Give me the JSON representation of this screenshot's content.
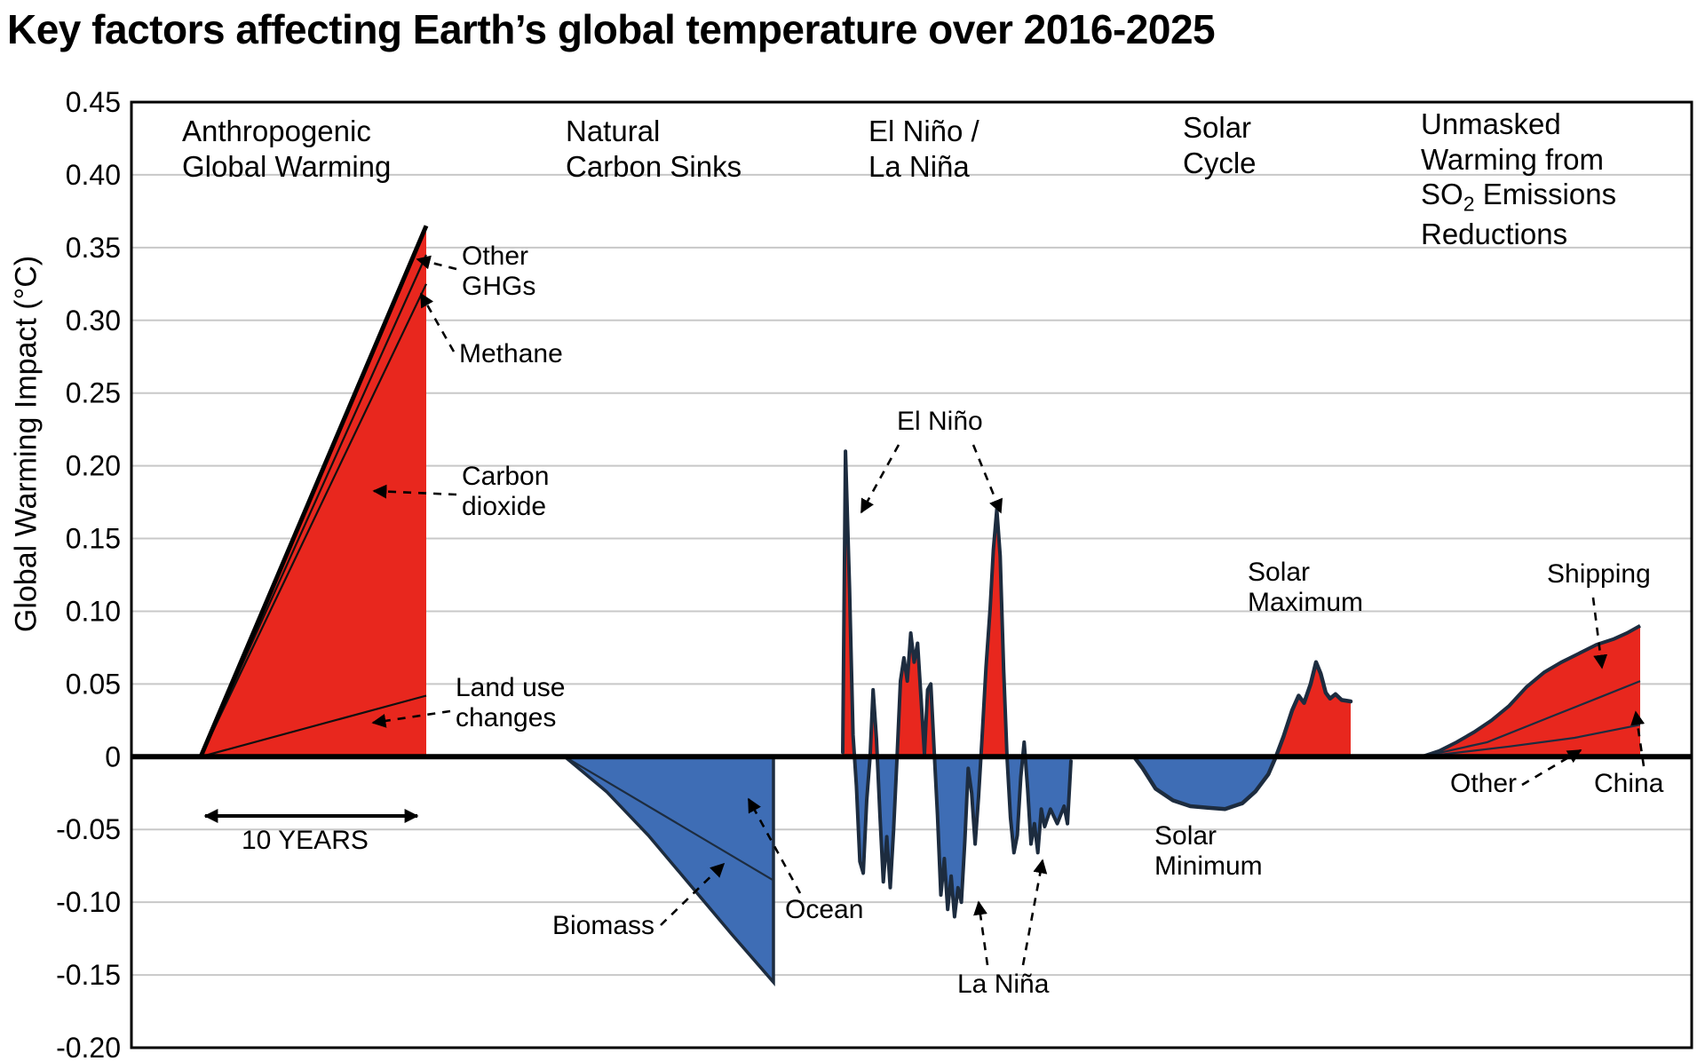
{
  "chart_data": {
    "type": "area",
    "title": "Key factors affecting Earth’s global temperature over 2016-2025",
    "ylabel": "Global Warming Impact (°C)",
    "ylim": [
      -0.2,
      0.45
    ],
    "ytick_step": 0.05,
    "yticks": [
      "0.45",
      "0.40",
      "0.35",
      "0.30",
      "0.25",
      "0.20",
      "0.15",
      "0.10",
      "0.05",
      "0",
      "-0.05",
      "-0.10",
      "-0.15",
      "-0.20"
    ],
    "grid": true,
    "legend": "none",
    "x_scale_note": "10 YEARS",
    "colors": {
      "red": "#e8271e",
      "blue": "#3e6db5",
      "outline": "#1d2c3f",
      "grid": "#c8c8c8",
      "axis": "#000000"
    },
    "sections": [
      {
        "id": "anthropogenic",
        "label": "Anthropogenic\nGlobal Warming",
        "fill": "red",
        "end_value_total": 0.365,
        "top_edge": [
          [
            0,
            0
          ],
          [
            1,
            0.365
          ]
        ],
        "inner_lines": [
          {
            "name": "methane-top",
            "points": [
              [
                0,
                0
              ],
              [
                1,
                0.345
              ]
            ]
          },
          {
            "name": "carbon-dioxide-top",
            "points": [
              [
                0,
                0
              ],
              [
                1,
                0.325
              ]
            ]
          },
          {
            "name": "land-use-top",
            "points": [
              [
                0,
                0
              ],
              [
                1,
                0.042
              ]
            ]
          }
        ]
      },
      {
        "id": "carbon-sinks",
        "label": "Natural\nCarbon Sinks",
        "fill": "blue",
        "end_value_total": -0.155,
        "edge": [
          [
            0,
            0
          ],
          [
            0.2,
            -0.024
          ],
          [
            0.4,
            -0.054
          ],
          [
            0.6,
            -0.088
          ],
          [
            0.8,
            -0.122
          ],
          [
            1,
            -0.155
          ]
        ],
        "inner_lines": [
          {
            "name": "ocean-biomass-boundary",
            "points": [
              [
                0,
                0
              ],
              [
                1,
                -0.085
              ]
            ]
          }
        ]
      },
      {
        "id": "enso",
        "label": "El Niño /\nLa Niña",
        "fill": "signed",
        "peak_el_nino_values": [
          0.21,
          0.17
        ],
        "trough_la_nina_values": [
          -0.11,
          -0.09
        ],
        "points": [
          [
            0.0,
            0.003
          ],
          [
            0.012,
            0.21
          ],
          [
            0.03,
            0.115
          ],
          [
            0.045,
            0.015
          ],
          [
            0.06,
            -0.02
          ],
          [
            0.075,
            -0.072
          ],
          [
            0.09,
            -0.08
          ],
          [
            0.105,
            -0.03
          ],
          [
            0.12,
            0.0
          ],
          [
            0.133,
            0.046
          ],
          [
            0.148,
            0.012
          ],
          [
            0.163,
            -0.04
          ],
          [
            0.178,
            -0.086
          ],
          [
            0.193,
            -0.055
          ],
          [
            0.208,
            -0.09
          ],
          [
            0.223,
            -0.05
          ],
          [
            0.238,
            0.0
          ],
          [
            0.253,
            0.052
          ],
          [
            0.268,
            0.068
          ],
          [
            0.283,
            0.052
          ],
          [
            0.298,
            0.085
          ],
          [
            0.313,
            0.065
          ],
          [
            0.328,
            0.078
          ],
          [
            0.343,
            0.04
          ],
          [
            0.358,
            0.002
          ],
          [
            0.372,
            0.046
          ],
          [
            0.386,
            0.05
          ],
          [
            0.4,
            0.006
          ],
          [
            0.415,
            -0.04
          ],
          [
            0.43,
            -0.095
          ],
          [
            0.445,
            -0.07
          ],
          [
            0.46,
            -0.105
          ],
          [
            0.475,
            -0.082
          ],
          [
            0.49,
            -0.11
          ],
          [
            0.505,
            -0.09
          ],
          [
            0.52,
            -0.1
          ],
          [
            0.535,
            -0.058
          ],
          [
            0.55,
            -0.008
          ],
          [
            0.565,
            -0.025
          ],
          [
            0.58,
            -0.06
          ],
          [
            0.595,
            -0.028
          ],
          [
            0.61,
            0.012
          ],
          [
            0.628,
            0.062
          ],
          [
            0.646,
            0.102
          ],
          [
            0.66,
            0.142
          ],
          [
            0.675,
            0.17
          ],
          [
            0.69,
            0.138
          ],
          [
            0.705,
            0.06
          ],
          [
            0.72,
            0.0
          ],
          [
            0.735,
            -0.042
          ],
          [
            0.75,
            -0.066
          ],
          [
            0.765,
            -0.054
          ],
          [
            0.78,
            -0.014
          ],
          [
            0.795,
            0.01
          ],
          [
            0.81,
            -0.022
          ],
          [
            0.825,
            -0.06
          ],
          [
            0.84,
            -0.046
          ],
          [
            0.855,
            -0.066
          ],
          [
            0.87,
            -0.036
          ],
          [
            0.885,
            -0.048
          ],
          [
            0.91,
            -0.036
          ],
          [
            0.94,
            -0.046
          ],
          [
            0.97,
            -0.034
          ],
          [
            0.985,
            -0.046
          ],
          [
            1.0,
            -0.003
          ]
        ]
      },
      {
        "id": "solar",
        "label": "Solar\nCycle",
        "fill": "signed",
        "solar_minimum_value": -0.036,
        "solar_maximum_value": 0.065,
        "points": [
          [
            0,
            0
          ],
          [
            0.04,
            -0.008
          ],
          [
            0.1,
            -0.022
          ],
          [
            0.18,
            -0.03
          ],
          [
            0.26,
            -0.034
          ],
          [
            0.34,
            -0.035
          ],
          [
            0.42,
            -0.036
          ],
          [
            0.5,
            -0.032
          ],
          [
            0.56,
            -0.024
          ],
          [
            0.62,
            -0.012
          ],
          [
            0.655,
            0.0
          ],
          [
            0.69,
            0.014
          ],
          [
            0.73,
            0.032
          ],
          [
            0.76,
            0.042
          ],
          [
            0.785,
            0.037
          ],
          [
            0.815,
            0.05
          ],
          [
            0.84,
            0.065
          ],
          [
            0.862,
            0.057
          ],
          [
            0.885,
            0.044
          ],
          [
            0.905,
            0.04
          ],
          [
            0.93,
            0.043
          ],
          [
            0.958,
            0.039
          ],
          [
            1,
            0.038
          ]
        ]
      },
      {
        "id": "so2",
        "label_pre": "Unmasked\nWarming from\nSO",
        "label_sub": "2",
        "label_post": " Emissions\nReductions",
        "fill": "red",
        "end_value_total": 0.09,
        "top_edge": [
          [
            0,
            0
          ],
          [
            0.08,
            0.004
          ],
          [
            0.16,
            0.01
          ],
          [
            0.24,
            0.017
          ],
          [
            0.32,
            0.025
          ],
          [
            0.4,
            0.035
          ],
          [
            0.48,
            0.048
          ],
          [
            0.56,
            0.058
          ],
          [
            0.64,
            0.065
          ],
          [
            0.72,
            0.071
          ],
          [
            0.8,
            0.077
          ],
          [
            0.88,
            0.081
          ],
          [
            0.94,
            0.085
          ],
          [
            1,
            0.09
          ]
        ],
        "inner_lines": [
          {
            "name": "shipping-bottom",
            "points": [
              [
                0,
                0
              ],
              [
                0.3,
                0.01
              ],
              [
                0.6,
                0.028
              ],
              [
                0.8,
                0.04
              ],
              [
                1,
                0.052
              ]
            ]
          },
          {
            "name": "china-bottom",
            "points": [
              [
                0,
                0
              ],
              [
                0.4,
                0.007
              ],
              [
                0.7,
                0.013
              ],
              [
                1,
                0.022
              ]
            ]
          }
        ]
      }
    ],
    "annotations": {
      "other_ghgs": "Other\nGHGs",
      "methane": "Methane",
      "carbon_dioxide": "Carbon\ndioxide",
      "land_use": "Land use\nchanges",
      "ten_years": "10 YEARS",
      "biomass": "Biomass",
      "ocean": "Ocean",
      "el_nino": "El Niño",
      "la_nina": "La Niña",
      "solar_maximum": "Solar\nMaximum",
      "solar_minimum": "Solar\nMinimum",
      "shipping": "Shipping",
      "other": "Other",
      "china": "China"
    }
  }
}
